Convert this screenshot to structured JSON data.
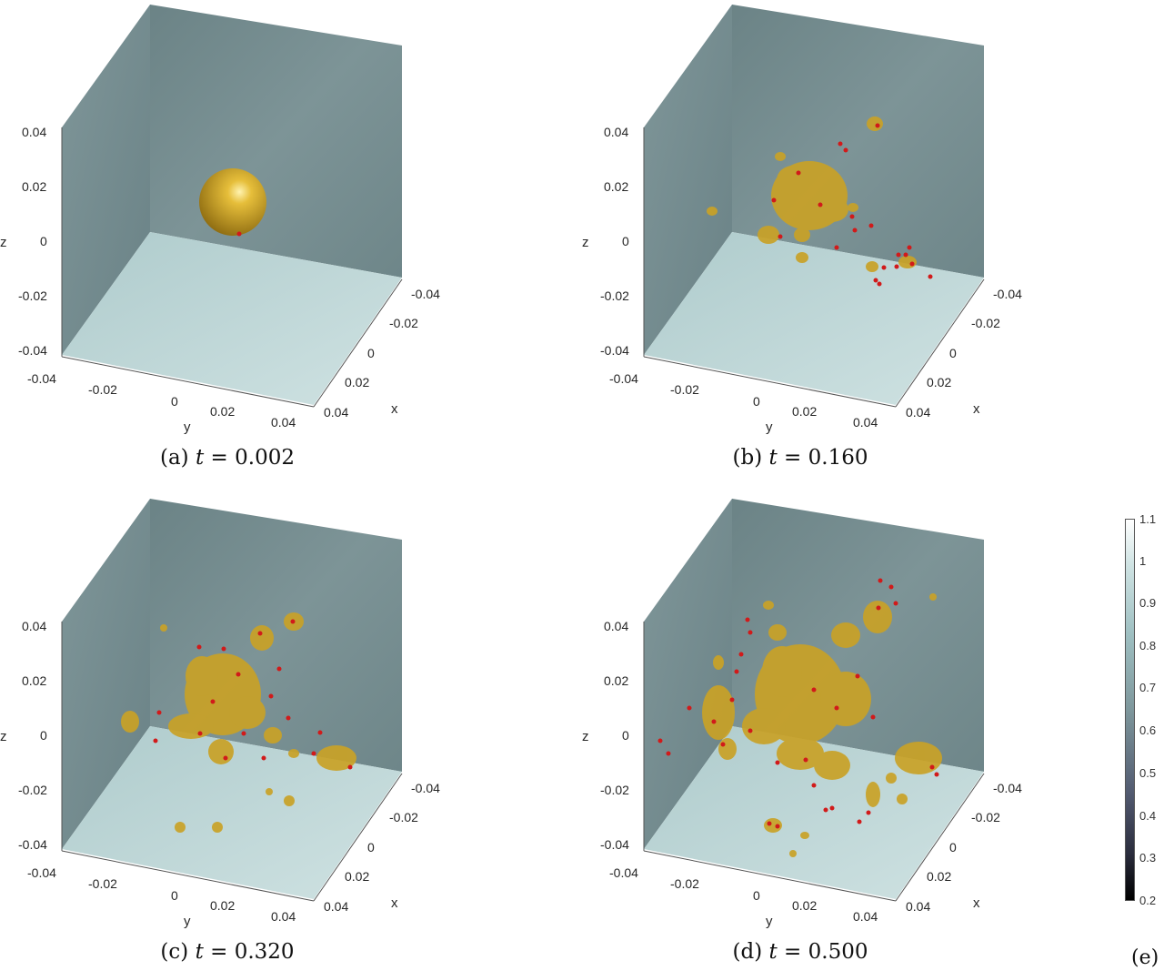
{
  "panels": [
    {
      "id": "a",
      "caption_tag": "(a)",
      "caption_var": "t",
      "caption_eq": "= 0.002"
    },
    {
      "id": "b",
      "caption_tag": "(b)",
      "caption_var": "t",
      "caption_eq": "= 0.160"
    },
    {
      "id": "c",
      "caption_tag": "(c)",
      "caption_var": "t",
      "caption_eq": "= 0.320"
    },
    {
      "id": "d",
      "caption_tag": "(d)",
      "caption_var": "t",
      "caption_eq": "= 0.500"
    }
  ],
  "axes": {
    "z_label": "z",
    "y_label": "y",
    "x_label": "x",
    "z_ticks": [
      "0.04",
      "0.02",
      "0",
      "-0.02",
      "-0.04"
    ],
    "y_ticks": [
      "-0.04",
      "-0.02",
      "0",
      "0.02",
      "0.04"
    ],
    "x_ticks": [
      "-0.04",
      "-0.02",
      "0",
      "0.02",
      "0.04"
    ]
  },
  "colorbar": {
    "ticks": [
      "1.1",
      "1",
      "0.9",
      "0.8",
      "0.7",
      "0.6",
      "0.5",
      "0.4",
      "0.3",
      "0.2"
    ],
    "label": "(e)",
    "colors": {
      "top": "#ffffff",
      "mid": "#9fc0c2",
      "low": "#525a70",
      "bottom": "#000000"
    }
  },
  "colors": {
    "wall": "#71898c",
    "floor": "#bcd6d7",
    "isosurface": "#c9a227",
    "particles": "#d11a1a"
  }
}
